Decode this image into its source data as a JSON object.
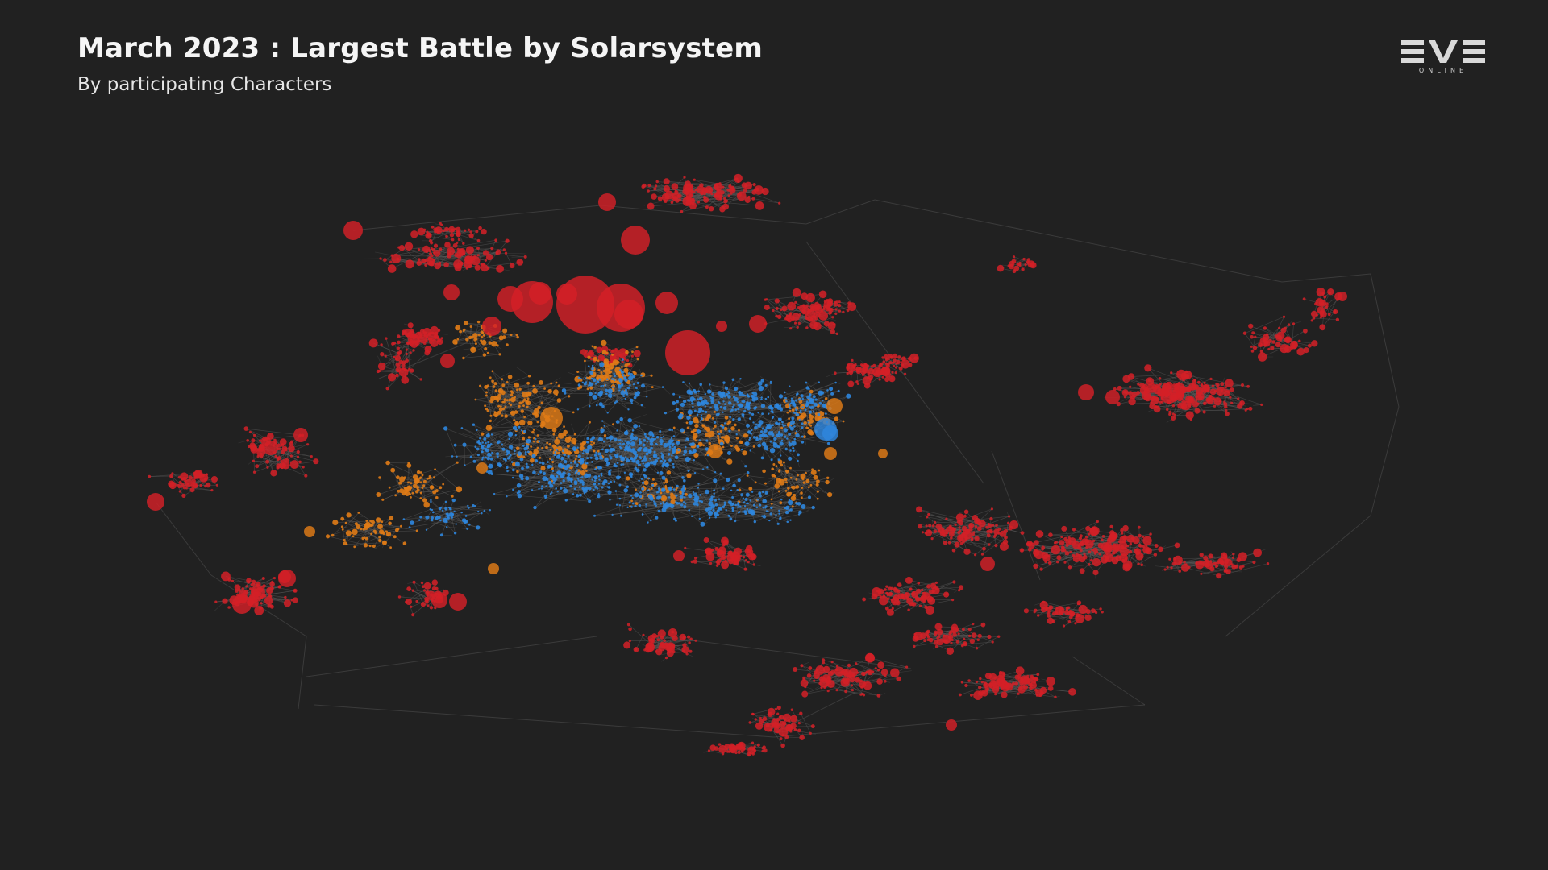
{
  "header": {
    "title": "March 2023 : Largest Battle by Solarsystem",
    "subtitle": "By participating Characters"
  },
  "logo": {
    "wordmark": "EVE",
    "tagline": "ONLINE"
  },
  "colors": {
    "background": "#212121",
    "edge": "#5a5a5a",
    "red_region": "#d42027",
    "orange_region": "#e07b16",
    "blue_region": "#2e86de",
    "title_text": "#f5f5f5"
  },
  "map": {
    "type": "node-link map",
    "legend_groups": [
      "red",
      "orange",
      "blue"
    ]
  }
}
